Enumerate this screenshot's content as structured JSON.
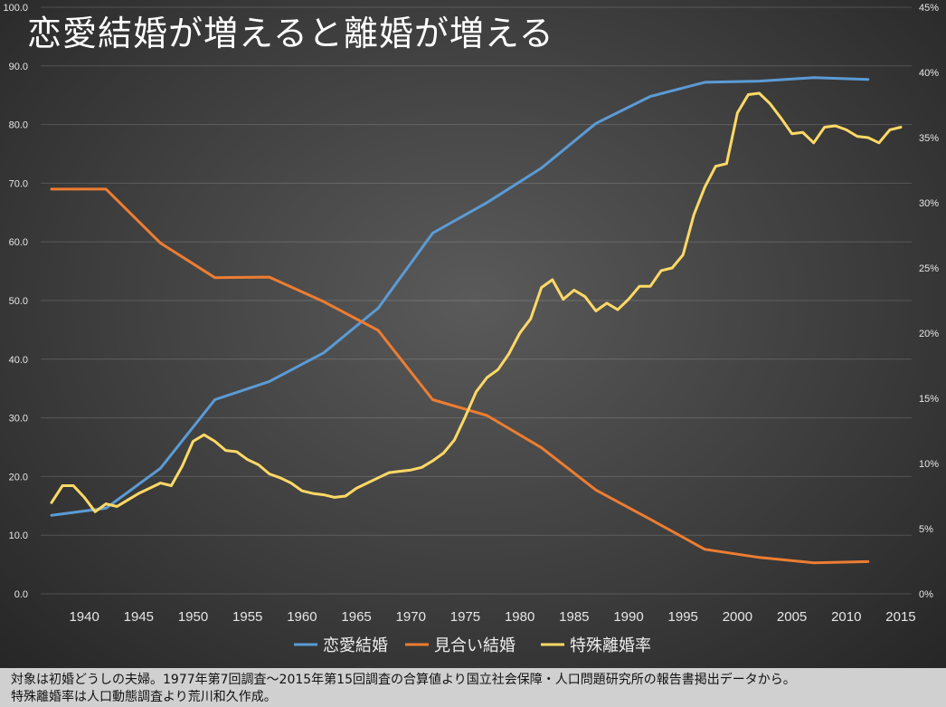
{
  "title": "恋愛結婚が増えると離婚が増える",
  "footer": {
    "line1": "対象は初婚どうしの夫婦。1977年第7回調査～2015年第15回調査の合算値より国立社会保障・人口問題研究所の報告書掲出データから。",
    "line2": "特殊離婚率は人口動態調査より荒川和久作成。"
  },
  "chart_data": {
    "type": "line",
    "title": "恋愛結婚が増えると離婚が増える",
    "x_ticks": [
      "1940",
      "1945",
      "1950",
      "1955",
      "1960",
      "1965",
      "1970",
      "1975",
      "1980",
      "1985",
      "1990",
      "1995",
      "2000",
      "2005",
      "2010",
      "2015"
    ],
    "xlim": [
      1936,
      2016
    ],
    "y_left": {
      "lim": [
        0,
        100
      ],
      "ticks": [
        "0.0",
        "10.0",
        "20.0",
        "30.0",
        "40.0",
        "50.0",
        "60.0",
        "70.0",
        "80.0",
        "90.0",
        "100.0"
      ]
    },
    "y_right": {
      "lim": [
        0,
        45
      ],
      "ticks": [
        "0%",
        "5%",
        "10%",
        "15%",
        "20%",
        "25%",
        "30%",
        "35%",
        "40%",
        "45%"
      ]
    },
    "legend_position": "bottom",
    "series": [
      {
        "name": "恋愛結婚",
        "axis": "left",
        "color": "#5b9bd5",
        "x": [
          1937,
          1942,
          1947,
          1952,
          1957,
          1962,
          1967,
          1972,
          1977,
          1982,
          1987,
          1992,
          1997,
          2002,
          2007,
          2012
        ],
        "y": [
          13.4,
          14.6,
          21.4,
          33.1,
          36.2,
          41.1,
          48.7,
          61.5,
          66.7,
          72.6,
          80.2,
          84.8,
          87.2,
          87.4,
          88.0,
          87.7
        ]
      },
      {
        "name": "見合い結婚",
        "axis": "left",
        "color": "#ed7d31",
        "x": [
          1937,
          1942,
          1947,
          1952,
          1957,
          1962,
          1967,
          1972,
          1977,
          1982,
          1987,
          1992,
          1997,
          2002,
          2007,
          2012
        ],
        "y": [
          69.0,
          69.0,
          59.8,
          53.9,
          54.0,
          49.8,
          44.9,
          33.1,
          30.4,
          24.9,
          17.7,
          12.7,
          7.6,
          6.2,
          5.3,
          5.5
        ]
      },
      {
        "name": "特殊離婚率",
        "axis": "right",
        "color": "#ffd966",
        "x": [
          1937,
          1938,
          1939,
          1940,
          1941,
          1942,
          1943,
          1944,
          1945,
          1946,
          1947,
          1948,
          1949,
          1950,
          1951,
          1952,
          1953,
          1954,
          1955,
          1956,
          1957,
          1958,
          1959,
          1960,
          1961,
          1962,
          1963,
          1964,
          1965,
          1966,
          1967,
          1968,
          1969,
          1970,
          1971,
          1972,
          1973,
          1974,
          1975,
          1976,
          1977,
          1978,
          1979,
          1980,
          1981,
          1982,
          1983,
          1984,
          1985,
          1986,
          1987,
          1988,
          1989,
          1990,
          1991,
          1992,
          1993,
          1994,
          1995,
          1996,
          1997,
          1998,
          1999,
          2000,
          2001,
          2002,
          2003,
          2004,
          2005,
          2006,
          2007,
          2008,
          2009,
          2010,
          2011,
          2012,
          2013,
          2014,
          2015
        ],
        "y": [
          7.0,
          8.3,
          8.3,
          7.4,
          6.3,
          6.9,
          6.7,
          7.2,
          7.7,
          8.1,
          8.5,
          8.3,
          9.8,
          11.7,
          12.2,
          11.7,
          11.0,
          10.9,
          10.3,
          9.9,
          9.2,
          8.9,
          8.5,
          7.9,
          7.7,
          7.6,
          7.4,
          7.5,
          8.1,
          8.5,
          8.9,
          9.3,
          9.4,
          9.5,
          9.7,
          10.2,
          10.8,
          11.8,
          13.6,
          15.5,
          16.6,
          17.2,
          18.4,
          20.0,
          21.1,
          23.5,
          24.1,
          22.6,
          23.3,
          22.8,
          21.7,
          22.3,
          21.8,
          22.6,
          23.6,
          23.6,
          24.8,
          25.0,
          26.0,
          29.1,
          31.2,
          32.8,
          33.0,
          36.9,
          38.3,
          38.4,
          37.6,
          36.5,
          35.3,
          35.4,
          34.6,
          35.8,
          35.9,
          35.6,
          35.1,
          35.0,
          34.6,
          35.6,
          35.8
        ]
      }
    ]
  }
}
